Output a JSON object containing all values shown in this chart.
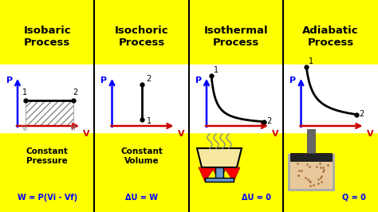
{
  "background_color": "#FFFF00",
  "panel_titles": [
    "Isobaric\nProcess",
    "Isochoric\nProcess",
    "Isothermal\nProcess",
    "Adiabatic\nProcess"
  ],
  "title_color": "#000000",
  "title_fontsize": 9.5,
  "axis_label_P": "P",
  "axis_label_V": "V",
  "axis_color_P": "#0000FF",
  "axis_color_V": "#CC0000",
  "formula_color": "#0000FF",
  "formulas": [
    "W = P(Vi - Vf)",
    "ΔU = W",
    "ΔU = 0",
    "Q = 0"
  ],
  "subtext": [
    "Constant\nPressure",
    "Constant\nVolume",
    "",
    ""
  ],
  "graph_bg": "#FFFFFF",
  "divider_color": "#000000",
  "cup_fill": "#F5E6A0",
  "cup_edge": "#000000",
  "flame_color": "#FF0000",
  "piston_container_fill": "#E8C89A",
  "piston_black": "#222222",
  "piston_rod": "#666666",
  "piston_frame": "#AAAAAA"
}
